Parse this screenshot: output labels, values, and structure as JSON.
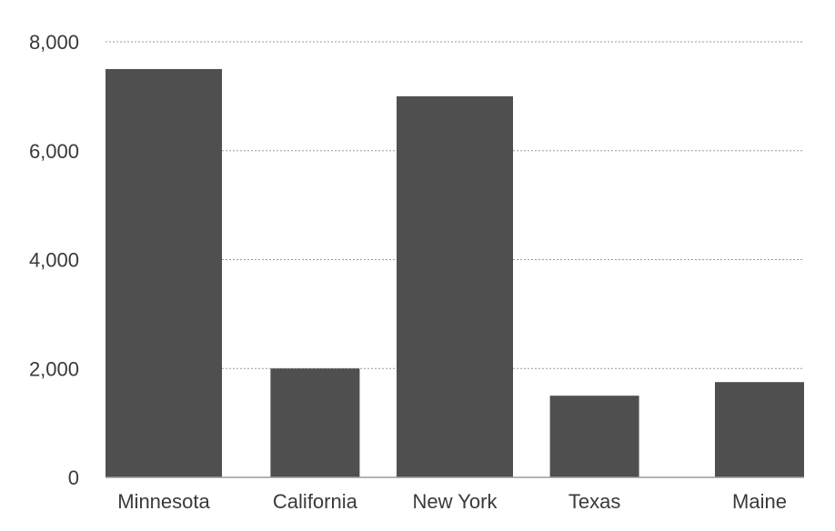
{
  "chart_data": {
    "type": "bar",
    "title": "",
    "xlabel": "",
    "ylabel": "",
    "categories": [
      "Minnesota",
      "California",
      "New York",
      "Texas",
      "Maine"
    ],
    "values": [
      7500,
      2000,
      7000,
      1500,
      1750
    ],
    "ylim": [
      0,
      8000
    ],
    "yticks": [
      0,
      2000,
      4000,
      6000,
      8000
    ],
    "ytick_labels": [
      "0",
      "2,000",
      "4,000",
      "6,000",
      "8,000"
    ],
    "grid": true,
    "legend": "none",
    "bar_color": "#4f4f4f",
    "grid_color": "#9a9a9a",
    "axis_color": "#9a9a9a",
    "label_color": "#3a3a3a"
  }
}
